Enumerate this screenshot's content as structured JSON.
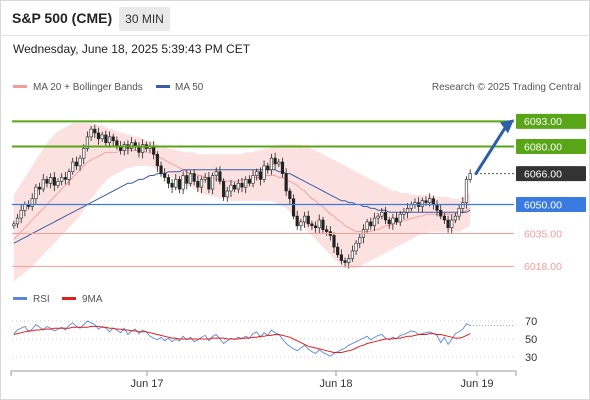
{
  "header": {
    "title": "S&P 500 (CME)",
    "timeframe": "30 MIN",
    "datetime": "Wednesday, June 18, 2025 5:39:43 PM CET"
  },
  "legend": {
    "bb": "MA 20 + Bollinger Bands",
    "ma50": "MA 50",
    "credit": "Research © 2025 Trading Central"
  },
  "rsi_legend": {
    "rsi": "RSI",
    "ma": "9MA"
  },
  "colors": {
    "up_level": "#58a618",
    "down_level": "#f29c9c",
    "pivot": "#3a7be0",
    "current": "#333333",
    "arrow": "#2c5fa3",
    "bb_fill": "#fcdcdc",
    "bb_line": "#f29c9c",
    "ma50": "#3d5da6",
    "rsi": "#5b87d6",
    "rsi_ma": "#e0201a"
  },
  "chart_data": [
    {
      "type": "candlestick",
      "title": "S&P 500 (CME)",
      "timeframe": "30 MIN",
      "x_labels": [
        "Jun 17",
        "Jun 18",
        "Jun 19"
      ],
      "ylim": [
        6012,
        6102
      ],
      "levels": [
        {
          "value": 6093.0,
          "label": "6093.00",
          "kind": "resistance"
        },
        {
          "value": 6080.0,
          "label": "6080.00",
          "kind": "resistance"
        },
        {
          "value": 6066.0,
          "label": "6066.00",
          "kind": "last"
        },
        {
          "value": 6050.0,
          "label": "6050.00",
          "kind": "pivot"
        },
        {
          "value": 6035.0,
          "label": "6035.00",
          "kind": "support"
        },
        {
          "value": 6018.0,
          "label": "6018.00",
          "kind": "support"
        }
      ],
      "close": [
        6040,
        6043,
        6047,
        6050,
        6049,
        6053,
        6059,
        6058,
        6063,
        6061,
        6064,
        6060,
        6062,
        6064,
        6063,
        6067,
        6072,
        6070,
        6074,
        6079,
        6085,
        6089,
        6087,
        6084,
        6086,
        6082,
        6085,
        6083,
        6080,
        6078,
        6081,
        6079,
        6082,
        6080,
        6077,
        6081,
        6079,
        6080,
        6076,
        6070,
        6066,
        6064,
        6061,
        6059,
        6063,
        6058,
        6065,
        6061,
        6066,
        6062,
        6059,
        6063,
        6064,
        6058,
        6065,
        6067,
        6062,
        6054,
        6057,
        6060,
        6058,
        6061,
        6059,
        6063,
        6061,
        6065,
        6067,
        6063,
        6070,
        6068,
        6074,
        6071,
        6072,
        6066,
        6057,
        6053,
        6044,
        6039,
        6041,
        6044,
        6040,
        6039,
        6038,
        6042,
        6037,
        6036,
        6034,
        6028,
        6024,
        6021,
        6020,
        6022,
        6026,
        6030,
        6033,
        6037,
        6041,
        6039,
        6043,
        6044,
        6046,
        6042,
        6040,
        6043,
        6041,
        6045,
        6046,
        6048,
        6050,
        6051,
        6049,
        6052,
        6051,
        6053,
        6050,
        6047,
        6044,
        6042,
        6038,
        6042,
        6044,
        6048,
        6051,
        6063,
        6066
      ],
      "ma20": [
        6032,
        6034,
        6036,
        6038,
        6040,
        6042,
        6044,
        6046,
        6048,
        6050,
        6052,
        6054,
        6056,
        6058,
        6060,
        6062,
        6064,
        6066,
        6068,
        6070,
        6072,
        6073,
        6074,
        6075,
        6076,
        6077,
        6077,
        6077,
        6077,
        6078,
        6078,
        6078,
        6078,
        6078,
        6078,
        6078,
        6077,
        6077,
        6076,
        6075,
        6074,
        6073,
        6072,
        6071,
        6070,
        6069,
        6068,
        6067,
        6066,
        6066,
        6065,
        6065,
        6064,
        6064,
        6064,
        6063,
        6063,
        6063,
        6062,
        6062,
        6062,
        6062,
        6063,
        6063,
        6063,
        6064,
        6064,
        6064,
        6065,
        6065,
        6065,
        6065,
        6064,
        6064,
        6063,
        6062,
        6061,
        6060,
        6058,
        6057,
        6055,
        6053,
        6052,
        6050,
        6049,
        6047,
        6045,
        6044,
        6042,
        6041,
        6039,
        6038,
        6037,
        6036,
        6036,
        6036,
        6036,
        6036,
        6037,
        6037,
        6038,
        6039,
        6039,
        6040,
        6041,
        6041,
        6042,
        6042,
        6043,
        6043,
        6044,
        6044,
        6045,
        6045,
        6045,
        6045,
        6045,
        6045,
        6045,
        6045,
        6045,
        6046,
        6046,
        6047,
        6048
      ],
      "bb_upper": [
        6055,
        6058,
        6061,
        6064,
        6067,
        6070,
        6073,
        6076,
        6079,
        6082,
        6084,
        6086,
        6088,
        6089,
        6090,
        6091,
        6092,
        6092,
        6092,
        6092,
        6092,
        6092,
        6092,
        6091,
        6091,
        6090,
        6089,
        6089,
        6088,
        6087,
        6087,
        6086,
        6086,
        6085,
        6085,
        6084,
        6083,
        6083,
        6082,
        6081,
        6080,
        6080,
        6079,
        6079,
        6078,
        6078,
        6077,
        6077,
        6077,
        6077,
        6076,
        6076,
        6076,
        6076,
        6076,
        6076,
        6076,
        6076,
        6076,
        6076,
        6076,
        6076,
        6076,
        6077,
        6077,
        6077,
        6078,
        6078,
        6079,
        6079,
        6080,
        6080,
        6081,
        6081,
        6081,
        6081,
        6081,
        6081,
        6081,
        6080,
        6080,
        6079,
        6078,
        6077,
        6076,
        6075,
        6074,
        6073,
        6072,
        6071,
        6070,
        6069,
        6068,
        6067,
        6066,
        6065,
        6064,
        6063,
        6062,
        6061,
        6060,
        6059,
        6058,
        6057,
        6057,
        6056,
        6056,
        6056,
        6055,
        6055,
        6055,
        6055,
        6055,
        6055,
        6054,
        6054,
        6054,
        6054,
        6054,
        6053,
        6053,
        6053,
        6054,
        6055,
        6056
      ],
      "bb_lower": [
        6010,
        6012,
        6013,
        6015,
        6016,
        6018,
        6020,
        6022,
        6024,
        6026,
        6028,
        6030,
        6032,
        6034,
        6036,
        6038,
        6040,
        6042,
        6044,
        6047,
        6050,
        6053,
        6055,
        6058,
        6060,
        6062,
        6064,
        6065,
        6066,
        6067,
        6068,
        6069,
        6069,
        6070,
        6070,
        6070,
        6070,
        6070,
        6069,
        6068,
        6067,
        6066,
        6065,
        6064,
        6063,
        6062,
        6061,
        6060,
        6059,
        6058,
        6057,
        6056,
        6055,
        6055,
        6054,
        6054,
        6053,
        6053,
        6053,
        6052,
        6052,
        6052,
        6052,
        6052,
        6052,
        6052,
        6052,
        6052,
        6052,
        6052,
        6052,
        6051,
        6050,
        6049,
        6048,
        6046,
        6044,
        6042,
        6040,
        6038,
        6036,
        6034,
        6032,
        6030,
        6028,
        6026,
        6024,
        6022,
        6020,
        6019,
        6018,
        6017,
        6017,
        6017,
        6018,
        6019,
        6020,
        6021,
        6022,
        6023,
        6024,
        6025,
        6026,
        6027,
        6028,
        6029,
        6030,
        6031,
        6032,
        6033,
        6034,
        6035,
        6035,
        6036,
        6036,
        6036,
        6036,
        6036,
        6036,
        6036,
        6036,
        6036,
        6037,
        6038,
        6039
      ],
      "ma50": [
        6030,
        6031,
        6032,
        6033,
        6034,
        6035,
        6036,
        6037,
        6038,
        6039,
        6040,
        6041,
        6042,
        6043,
        6044,
        6045,
        6046,
        6047,
        6048,
        6049,
        6050,
        6051,
        6052,
        6053,
        6054,
        6055,
        6056,
        6057,
        6058,
        6059,
        6060,
        6061,
        6061,
        6062,
        6063,
        6063,
        6064,
        6065,
        6065,
        6066,
        6066,
        6066,
        6067,
        6067,
        6067,
        6067,
        6068,
        6068,
        6068,
        6068,
        6068,
        6068,
        6068,
        6068,
        6068,
        6068,
        6068,
        6068,
        6068,
        6068,
        6068,
        6068,
        6068,
        6068,
        6068,
        6068,
        6068,
        6068,
        6068,
        6068,
        6068,
        6068,
        6067,
        6067,
        6066,
        6066,
        6065,
        6064,
        6063,
        6062,
        6061,
        6060,
        6059,
        6058,
        6057,
        6056,
        6055,
        6054,
        6053,
        6052,
        6052,
        6051,
        6051,
        6050,
        6050,
        6049,
        6049,
        6048,
        6048,
        6047,
        6047,
        6047,
        6046,
        6046,
        6046,
        6046,
        6046,
        6046,
        6046,
        6046,
        6046,
        6046,
        6046,
        6046,
        6046,
        6046,
        6046,
        6046,
        6046,
        6046,
        6046,
        6046,
        6046,
        6046,
        6047
      ],
      "projection": {
        "from": 6066.0,
        "to": 6093.0
      }
    },
    {
      "type": "line",
      "title": "RSI",
      "ylim": [
        20,
        80
      ],
      "y_ticks": [
        70,
        50,
        30
      ],
      "series": [
        {
          "name": "RSI",
          "values": [
            56,
            60,
            62,
            64,
            58,
            61,
            66,
            63,
            60,
            64,
            62,
            59,
            61,
            63,
            60,
            65,
            68,
            64,
            62,
            66,
            70,
            68,
            66,
            61,
            64,
            62,
            58,
            62,
            60,
            57,
            62,
            55,
            59,
            61,
            56,
            60,
            58,
            53,
            51,
            49,
            52,
            48,
            51,
            47,
            50,
            48,
            53,
            49,
            52,
            47,
            49,
            52,
            54,
            48,
            53,
            55,
            50,
            45,
            48,
            51,
            49,
            52,
            50,
            53,
            51,
            56,
            58,
            52,
            57,
            54,
            60,
            57,
            55,
            50,
            45,
            42,
            39,
            37,
            40,
            43,
            39,
            36,
            34,
            38,
            35,
            33,
            31,
            34,
            36,
            38,
            40,
            43,
            45,
            47,
            49,
            51,
            53,
            49,
            52,
            54,
            55,
            51,
            49,
            52,
            50,
            54,
            55,
            57,
            59,
            58,
            55,
            56,
            57,
            58,
            56,
            54,
            46,
            52,
            44,
            50,
            56,
            58,
            61,
            67,
            65
          ]
        },
        {
          "name": "9MA",
          "values": [
            55,
            56,
            57,
            58,
            59,
            59,
            60,
            60,
            61,
            61,
            61,
            62,
            62,
            62,
            62,
            62,
            63,
            63,
            63,
            63,
            63,
            64,
            64,
            64,
            63,
            63,
            62,
            62,
            61,
            61,
            60,
            60,
            59,
            59,
            58,
            58,
            58,
            57,
            56,
            55,
            54,
            53,
            52,
            51,
            51,
            50,
            50,
            50,
            50,
            50,
            50,
            50,
            50,
            50,
            51,
            51,
            51,
            51,
            50,
            50,
            50,
            50,
            51,
            51,
            51,
            52,
            52,
            53,
            53,
            54,
            54,
            55,
            55,
            54,
            53,
            52,
            50,
            48,
            46,
            44,
            42,
            41,
            40,
            39,
            38,
            37,
            36,
            35,
            35,
            35,
            36,
            37,
            38,
            40,
            42,
            43,
            45,
            46,
            47,
            48,
            49,
            50,
            50,
            50,
            51,
            51,
            52,
            53,
            53,
            54,
            55,
            55,
            55,
            56,
            56,
            55,
            55,
            54,
            53,
            52,
            51,
            51,
            52,
            54,
            56
          ]
        }
      ]
    }
  ]
}
